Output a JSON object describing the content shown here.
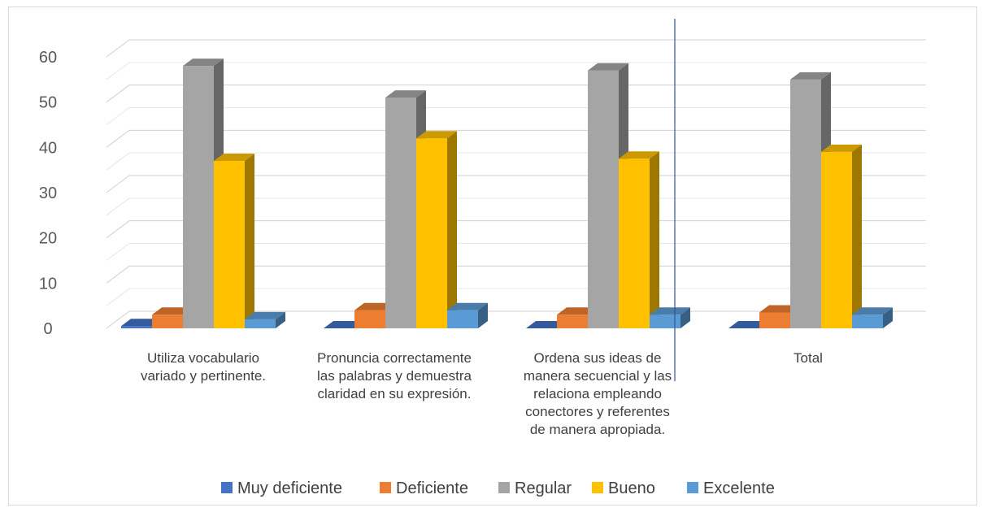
{
  "chart_data": {
    "type": "bar",
    "categories": [
      [
        "Utiliza vocabulario",
        "variado y pertinente."
      ],
      [
        "Pronuncia correctamente",
        "las palabras y demuestra",
        "claridad en su expresión."
      ],
      [
        "Ordena sus ideas de",
        "manera secuencial y las",
        "relaciona empleando",
        "conectores y referentes",
        "de manera apropiada."
      ],
      [
        "Total"
      ]
    ],
    "series": [
      {
        "name": "Muy deficiente",
        "values": [
          0.5,
          0,
          0,
          0
        ],
        "color": "#4472c4"
      },
      {
        "name": "Deficiente",
        "values": [
          3,
          4,
          3,
          3.5
        ],
        "color": "#ed7d31"
      },
      {
        "name": "Regular",
        "values": [
          58,
          51,
          57,
          55
        ],
        "color": "#a5a5a5"
      },
      {
        "name": "Bueno",
        "values": [
          37,
          42,
          37.5,
          39
        ],
        "color": "#ffc000"
      },
      {
        "name": "Excelente",
        "values": [
          2,
          4,
          3,
          3
        ],
        "color": "#5b9bd5"
      }
    ],
    "y_ticks": [
      "0",
      "10",
      "20",
      "30",
      "40",
      "50",
      "60"
    ],
    "ylim": [
      0,
      60
    ],
    "style": "3d-clustered-column",
    "grid": true,
    "legend_position": "bottom"
  }
}
